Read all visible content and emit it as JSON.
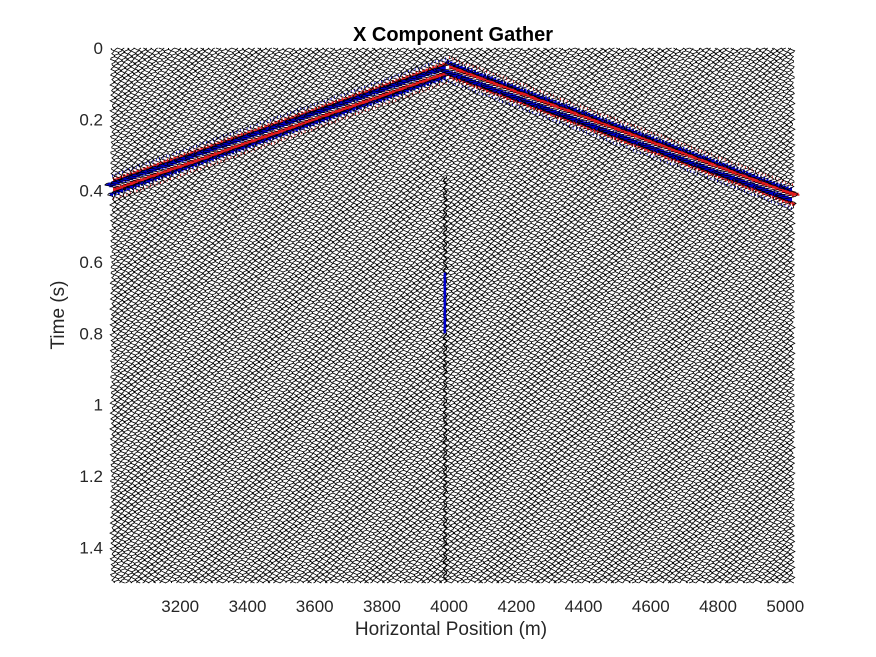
{
  "chart_data": {
    "type": "seismic-wiggle",
    "title": "X Component Gather",
    "xlabel": "Horizontal Position (m)",
    "ylabel": "Time (s)",
    "xlim": [
      3000,
      5020
    ],
    "ylim": [
      0,
      1.5
    ],
    "y_reversed": true,
    "x_ticks": [
      "3200",
      "3400",
      "3600",
      "3800",
      "4000",
      "4200",
      "4400",
      "4600",
      "4800",
      "5000"
    ],
    "y_ticks": [
      "0",
      "0.2",
      "0.4",
      "0.6",
      "0.8",
      "1",
      "1.2",
      "1.4"
    ],
    "trace_spacing": 10,
    "source_x": 4000,
    "direct_arrival": {
      "t_at_source": 0.06,
      "t_at_3000": 0.39,
      "t_at_5000": 0.41
    },
    "fill_colors": {
      "positive": "#e31a1c",
      "negative": "#0000cc"
    },
    "trace_color": "#000000"
  }
}
